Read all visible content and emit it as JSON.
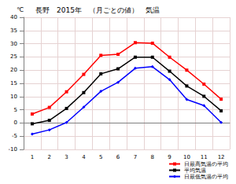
{
  "chart_data": {
    "type": "line",
    "title": "長野　2015年　（月ごとの値）　気温",
    "ylabel": "℃",
    "categories": [
      "1",
      "2",
      "3",
      "4",
      "5",
      "6",
      "7",
      "8",
      "9",
      "10",
      "11",
      "12"
    ],
    "series": [
      {
        "name": "日最高気温の平均",
        "color": "#ff0000",
        "marker": "square",
        "values": [
          3.4,
          5.9,
          11.8,
          18.4,
          25.6,
          26.0,
          30.4,
          30.2,
          24.9,
          20.0,
          14.7,
          9.0
        ]
      },
      {
        "name": "平均気温",
        "color": "#000000",
        "marker": "square",
        "values": [
          -0.3,
          1.0,
          5.5,
          11.5,
          18.6,
          20.5,
          24.9,
          24.9,
          19.6,
          14.0,
          10.1,
          4.6
        ]
      },
      {
        "name": "日最低気温の平均",
        "color": "#0000ff",
        "marker": "diamond",
        "values": [
          -4.2,
          -2.6,
          0.2,
          6.0,
          12.0,
          15.4,
          20.7,
          21.3,
          16.4,
          8.9,
          6.6,
          0.2
        ]
      }
    ],
    "ylim": [
      -10,
      40
    ],
    "yticks": [
      -10,
      -5,
      0,
      5,
      10,
      15,
      20,
      25,
      30,
      35,
      40
    ],
    "grid": true,
    "legend": "lower right"
  }
}
